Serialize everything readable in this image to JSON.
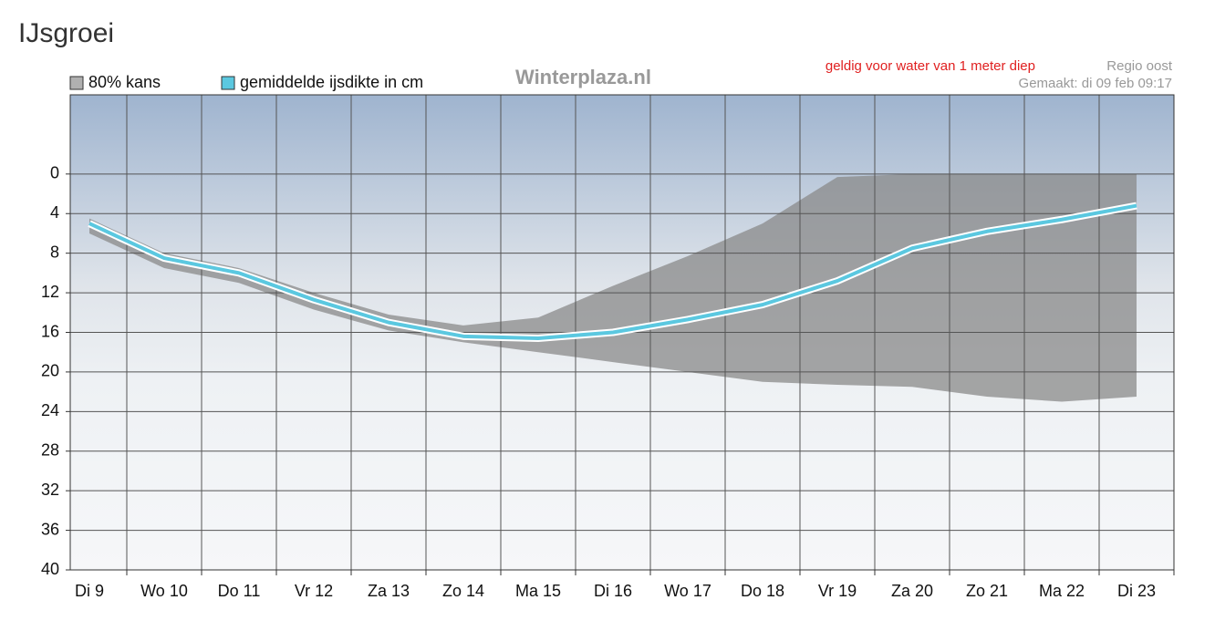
{
  "chart_data": {
    "type": "line",
    "title": "IJsgroei",
    "watermark": "Winterplaza.nl",
    "note": "geldig voor water van 1 meter diep",
    "region": "Regio oost",
    "made": "Gemaakt: di 09 feb 09:17",
    "categories": [
      "Di 9",
      "Wo 10",
      "Do 11",
      "Vr 12",
      "Za 13",
      "Zo 14",
      "Ma 15",
      "Di 16",
      "Wo 17",
      "Do 18",
      "Vr 19",
      "Za 20",
      "Zo 21",
      "Ma 22",
      "Di 23"
    ],
    "band": {
      "name": "80% kans",
      "color": "#8a8a8a",
      "low": [
        4.5,
        8,
        9.5,
        12,
        14.2,
        15.3,
        14.5,
        11.3,
        8.3,
        5,
        0.3,
        0,
        0,
        0,
        0
      ],
      "high": [
        6,
        9.5,
        11,
        13.7,
        15.8,
        17,
        18,
        19,
        20,
        21,
        21.3,
        21.5,
        22.5,
        23,
        22.5
      ]
    },
    "series": [
      {
        "name": "gemiddelde ijsdikte in cm",
        "color": "#5bc8e0",
        "values": [
          5,
          8.5,
          10,
          12.7,
          15,
          16.4,
          16.6,
          16,
          14.7,
          13.2,
          10.8,
          7.5,
          5.8,
          4.6,
          3.2
        ]
      }
    ],
    "ylim": [
      -8,
      40
    ],
    "yticks": [
      0,
      4,
      8,
      12,
      16,
      20,
      24,
      28,
      32,
      36,
      40
    ],
    "grid": true
  }
}
